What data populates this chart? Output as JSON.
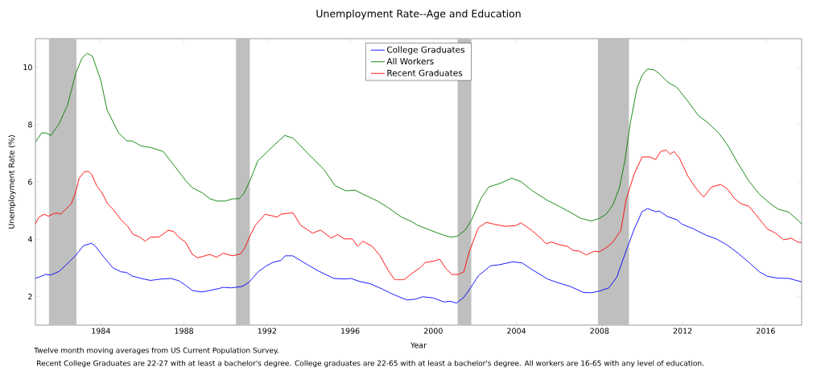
{
  "chart_data": {
    "type": "line",
    "title": "Unemployment Rate--Age and Education",
    "xlabel": "Year",
    "ylabel": "Unemployment Rate (%)",
    "annotations": [
      "Twelve month moving averages from US Current Population Survey.",
      "Recent College Graduates are 22-27 with at least a bachelor's degree. College graduates are 22-65 with at least a bachelor's degree. All workers are 16-65 with any level of education."
    ],
    "xlim": [
      1980.85,
      2017.73
    ],
    "ylim": [
      1,
      11
    ],
    "xticks": [
      1984,
      1988,
      1992,
      1996,
      2000,
      2004,
      2008,
      2012,
      2016
    ],
    "yticks": [
      2,
      4,
      6,
      8,
      10
    ],
    "grid": false,
    "legend": "top",
    "line_style": "solid",
    "marker": "none",
    "bands": [
      {
        "axis": "x",
        "from": 1981.5,
        "to": 1982.83,
        "color": "#bfbfbf"
      },
      {
        "axis": "x",
        "from": 1990.5,
        "to": 1991.17,
        "color": "#bfbfbf"
      },
      {
        "axis": "x",
        "from": 2001.17,
        "to": 2001.83,
        "color": "#bfbfbf"
      },
      {
        "axis": "x",
        "from": 2007.92,
        "to": 2009.42,
        "color": "#bfbfbf"
      }
    ],
    "series": [
      {
        "name": "College Graduates",
        "color": "#0000ff",
        "x": [
          1980.85,
          1981.35,
          1981.6,
          1982.0,
          1982.51,
          1982.77,
          1983.16,
          1983.55,
          1983.74,
          1984.19,
          1984.58,
          1984.97,
          1985.23,
          1985.49,
          1985.94,
          1986.39,
          1986.91,
          1987.37,
          1987.75,
          1988.08,
          1988.4,
          1988.79,
          1989.04,
          1989.37,
          1989.7,
          1989.89,
          1990.28,
          1990.8,
          1991.12,
          1991.57,
          1991.95,
          1992.28,
          1992.67,
          1992.87,
          1993.23,
          1993.99,
          1994.5,
          1995.21,
          1995.72,
          1996.04,
          1996.42,
          1996.99,
          1997.57,
          1998.08,
          1998.72,
          1999.1,
          1999.49,
          2000.0,
          2000.51,
          2000.83,
          2001.12,
          2001.47,
          2001.79,
          2002.17,
          2002.75,
          2003.19,
          2003.83,
          2004.28,
          2004.73,
          2005.5,
          2005.95,
          2006.59,
          2007.23,
          2007.61,
          2008.0,
          2008.45,
          2008.83,
          2009.22,
          2009.67,
          2010.05,
          2010.31,
          2010.7,
          2010.89,
          2011.27,
          2011.72,
          2011.98,
          2012.49,
          2013.13,
          2013.65,
          2014.16,
          2014.67,
          2015.19,
          2015.7,
          2016.09,
          2016.6,
          2017.12,
          2017.73
        ],
        "values": [
          2.63,
          2.77,
          2.75,
          2.88,
          3.23,
          3.42,
          3.77,
          3.86,
          3.75,
          3.33,
          3.0,
          2.86,
          2.84,
          2.72,
          2.63,
          2.56,
          2.61,
          2.63,
          2.55,
          2.39,
          2.21,
          2.16,
          2.18,
          2.23,
          2.28,
          2.32,
          2.3,
          2.35,
          2.49,
          2.86,
          3.06,
          3.19,
          3.26,
          3.42,
          3.42,
          3.09,
          2.88,
          2.63,
          2.61,
          2.63,
          2.53,
          2.44,
          2.25,
          2.07,
          1.88,
          1.9,
          1.99,
          1.95,
          1.81,
          1.83,
          1.77,
          1.97,
          2.3,
          2.72,
          3.07,
          3.11,
          3.21,
          3.17,
          2.95,
          2.61,
          2.49,
          2.35,
          2.14,
          2.13,
          2.19,
          2.3,
          2.67,
          3.47,
          4.35,
          4.96,
          5.07,
          4.96,
          4.98,
          4.79,
          4.68,
          4.52,
          4.37,
          4.14,
          4.0,
          3.79,
          3.51,
          3.19,
          2.86,
          2.7,
          2.64,
          2.63,
          2.51
        ]
      },
      {
        "name": "All Workers",
        "color": "#008000",
        "x": [
          1980.85,
          1981.15,
          1981.35,
          1981.6,
          1982.0,
          1982.4,
          1982.8,
          1983.1,
          1983.35,
          1983.6,
          1984.0,
          1984.3,
          1984.85,
          1985.25,
          1985.5,
          1985.95,
          1986.4,
          1987.0,
          1987.55,
          1988.1,
          1988.4,
          1988.9,
          1989.25,
          1989.6,
          1990.0,
          1990.35,
          1990.65,
          1990.9,
          1991.2,
          1991.55,
          1991.95,
          1992.35,
          1992.85,
          1993.25,
          1993.99,
          1994.76,
          1995.27,
          1995.78,
          1996.23,
          1996.68,
          1997.32,
          1997.83,
          1998.47,
          1998.98,
          1999.23,
          1999.87,
          2000.38,
          2000.83,
          2001.15,
          2001.53,
          2001.85,
          2002.3,
          2002.68,
          2003.19,
          2003.77,
          2004.22,
          2004.73,
          2005.5,
          2005.95,
          2006.46,
          2007.1,
          2007.61,
          2008.0,
          2008.32,
          2008.64,
          2008.96,
          2009.22,
          2009.48,
          2009.8,
          2010.05,
          2010.31,
          2010.63,
          2010.89,
          2011.27,
          2011.72,
          2012.24,
          2012.75,
          2013.26,
          2013.78,
          2014.16,
          2014.67,
          2015.19,
          2015.7,
          2016.22,
          2016.6,
          2017.12,
          2017.73
        ],
        "values": [
          7.39,
          7.71,
          7.71,
          7.62,
          8.04,
          8.69,
          9.81,
          10.33,
          10.49,
          10.38,
          9.54,
          8.51,
          7.71,
          7.43,
          7.43,
          7.25,
          7.2,
          7.06,
          6.55,
          6.03,
          5.8,
          5.61,
          5.41,
          5.33,
          5.33,
          5.41,
          5.41,
          5.61,
          6.08,
          6.73,
          7.01,
          7.29,
          7.62,
          7.53,
          6.97,
          6.41,
          5.87,
          5.69,
          5.71,
          5.55,
          5.33,
          5.1,
          4.77,
          4.61,
          4.49,
          4.31,
          4.17,
          4.07,
          4.1,
          4.31,
          4.68,
          5.43,
          5.83,
          5.94,
          6.13,
          6.01,
          5.71,
          5.35,
          5.19,
          4.99,
          4.73,
          4.63,
          4.73,
          4.87,
          5.19,
          5.8,
          6.73,
          8.04,
          9.25,
          9.72,
          9.94,
          9.91,
          9.77,
          9.49,
          9.3,
          8.83,
          8.32,
          8.04,
          7.67,
          7.29,
          6.64,
          6.03,
          5.57,
          5.24,
          5.05,
          4.94,
          4.54
        ]
      },
      {
        "name": "Recent Graduates",
        "color": "#ff0000",
        "x": [
          1980.85,
          1981.02,
          1981.28,
          1981.48,
          1981.73,
          1981.93,
          1982.06,
          1982.32,
          1982.58,
          1982.77,
          1982.96,
          1983.22,
          1983.42,
          1983.55,
          1983.81,
          1984.06,
          1984.32,
          1984.58,
          1984.97,
          1985.29,
          1985.55,
          1985.88,
          1986.14,
          1986.39,
          1986.78,
          1986.98,
          1987.24,
          1987.5,
          1987.75,
          1988.08,
          1988.4,
          1988.66,
          1988.92,
          1989.24,
          1989.57,
          1989.89,
          1990.34,
          1990.73,
          1990.93,
          1991.18,
          1991.44,
          1991.9,
          1992.22,
          1992.48,
          1992.67,
          1993.06,
          1993.26,
          1993.61,
          1994.19,
          1994.57,
          1995.08,
          1995.4,
          1995.72,
          1996.1,
          1996.36,
          1996.61,
          1997.06,
          1997.44,
          1997.83,
          1998.15,
          1998.59,
          1998.98,
          1999.36,
          1999.62,
          2000.0,
          2000.32,
          2000.58,
          2000.89,
          2001.21,
          2001.47,
          2001.73,
          2002.17,
          2002.56,
          2002.94,
          2003.45,
          2003.96,
          2004.22,
          2004.73,
          2005.18,
          2005.43,
          2005.69,
          2006.1,
          2006.46,
          2006.72,
          2007.04,
          2007.36,
          2007.74,
          2008.0,
          2008.32,
          2008.64,
          2009.03,
          2009.28,
          2009.67,
          2010.05,
          2010.44,
          2010.7,
          2010.95,
          2011.21,
          2011.4,
          2011.59,
          2011.85,
          2012.24,
          2012.62,
          2013.01,
          2013.39,
          2013.84,
          2014.16,
          2014.48,
          2014.8,
          2015.19,
          2015.57,
          2016.09,
          2016.47,
          2016.86,
          2017.24,
          2017.56,
          2017.73
        ],
        "values": [
          4.54,
          4.77,
          4.87,
          4.8,
          4.89,
          4.91,
          4.87,
          5.05,
          5.24,
          5.61,
          6.13,
          6.36,
          6.36,
          6.27,
          5.85,
          5.61,
          5.24,
          5.05,
          4.68,
          4.45,
          4.17,
          4.07,
          3.93,
          4.07,
          4.07,
          4.17,
          4.31,
          4.27,
          4.07,
          3.89,
          3.47,
          3.35,
          3.4,
          3.47,
          3.37,
          3.51,
          3.42,
          3.49,
          3.7,
          4.12,
          4.49,
          4.87,
          4.82,
          4.77,
          4.87,
          4.91,
          4.91,
          4.49,
          4.21,
          4.32,
          4.04,
          4.16,
          4.01,
          4.01,
          3.75,
          3.93,
          3.75,
          3.42,
          2.91,
          2.58,
          2.58,
          2.81,
          3.0,
          3.19,
          3.23,
          3.3,
          3.0,
          2.77,
          2.77,
          2.86,
          3.56,
          4.4,
          4.59,
          4.52,
          4.45,
          4.47,
          4.57,
          4.31,
          4.03,
          3.84,
          3.9,
          3.8,
          3.75,
          3.61,
          3.58,
          3.45,
          3.58,
          3.56,
          3.7,
          3.89,
          4.31,
          5.38,
          6.27,
          6.87,
          6.87,
          6.78,
          7.06,
          7.11,
          6.97,
          7.06,
          6.83,
          6.22,
          5.8,
          5.47,
          5.82,
          5.91,
          5.75,
          5.43,
          5.24,
          5.15,
          4.82,
          4.35,
          4.21,
          3.98,
          4.03,
          3.89,
          3.89
        ]
      }
    ]
  }
}
